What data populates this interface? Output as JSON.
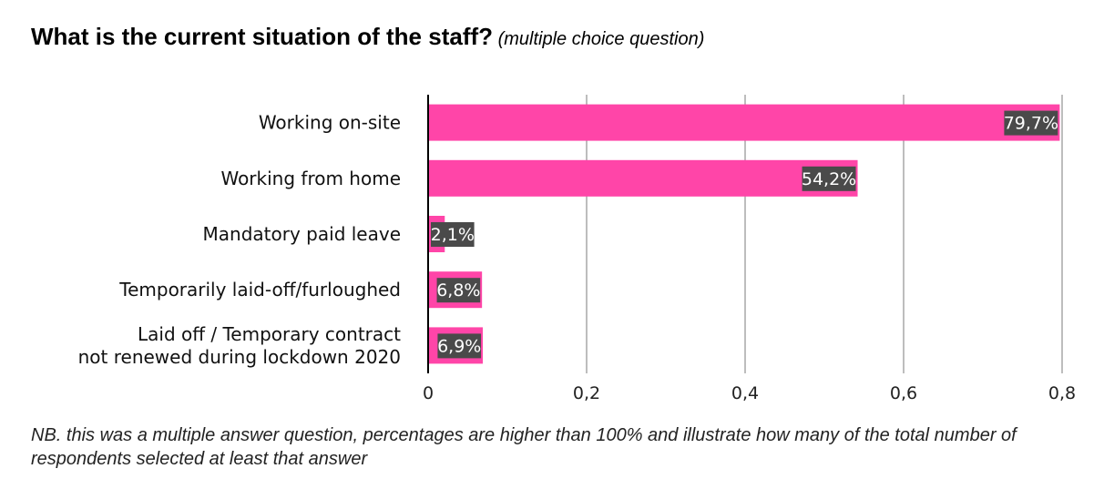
{
  "title": {
    "main": "What is the current situation of the staff?",
    "sub_open": " (",
    "sub": "multiple choice question",
    "sub_close": ")"
  },
  "note": "NB. this was a multiple answer question, percentages are higher than 100% and illustrate how many of the total number of respondents selected at least that answer",
  "colors": {
    "bar": "#ff45a8",
    "label_bg": "#4a4a4a",
    "label_text": "#ffffff",
    "grid": "#bdbdbd",
    "axis": "#000000"
  },
  "chart_data": {
    "type": "bar",
    "orientation": "horizontal",
    "categories": [
      [
        "Working on-site"
      ],
      [
        "Working from home"
      ],
      [
        "Mandatory paid leave"
      ],
      [
        "Temporarily laid-off/furloughed"
      ],
      [
        "Laid off / Temporary contract",
        "not renewed during lockdown 2020"
      ]
    ],
    "values": [
      0.797,
      0.542,
      0.021,
      0.068,
      0.069
    ],
    "data_labels": [
      "79,7%",
      "54,2%",
      "2,1%",
      "6,8%",
      "6,9%"
    ],
    "xlim": [
      0,
      0.8
    ],
    "xticks": [
      0,
      0.2,
      0.4,
      0.6,
      0.8
    ],
    "xtick_labels": [
      "0",
      "0,2",
      "0,4",
      "0,6",
      "0,8"
    ],
    "grid": true,
    "legend": "none"
  }
}
